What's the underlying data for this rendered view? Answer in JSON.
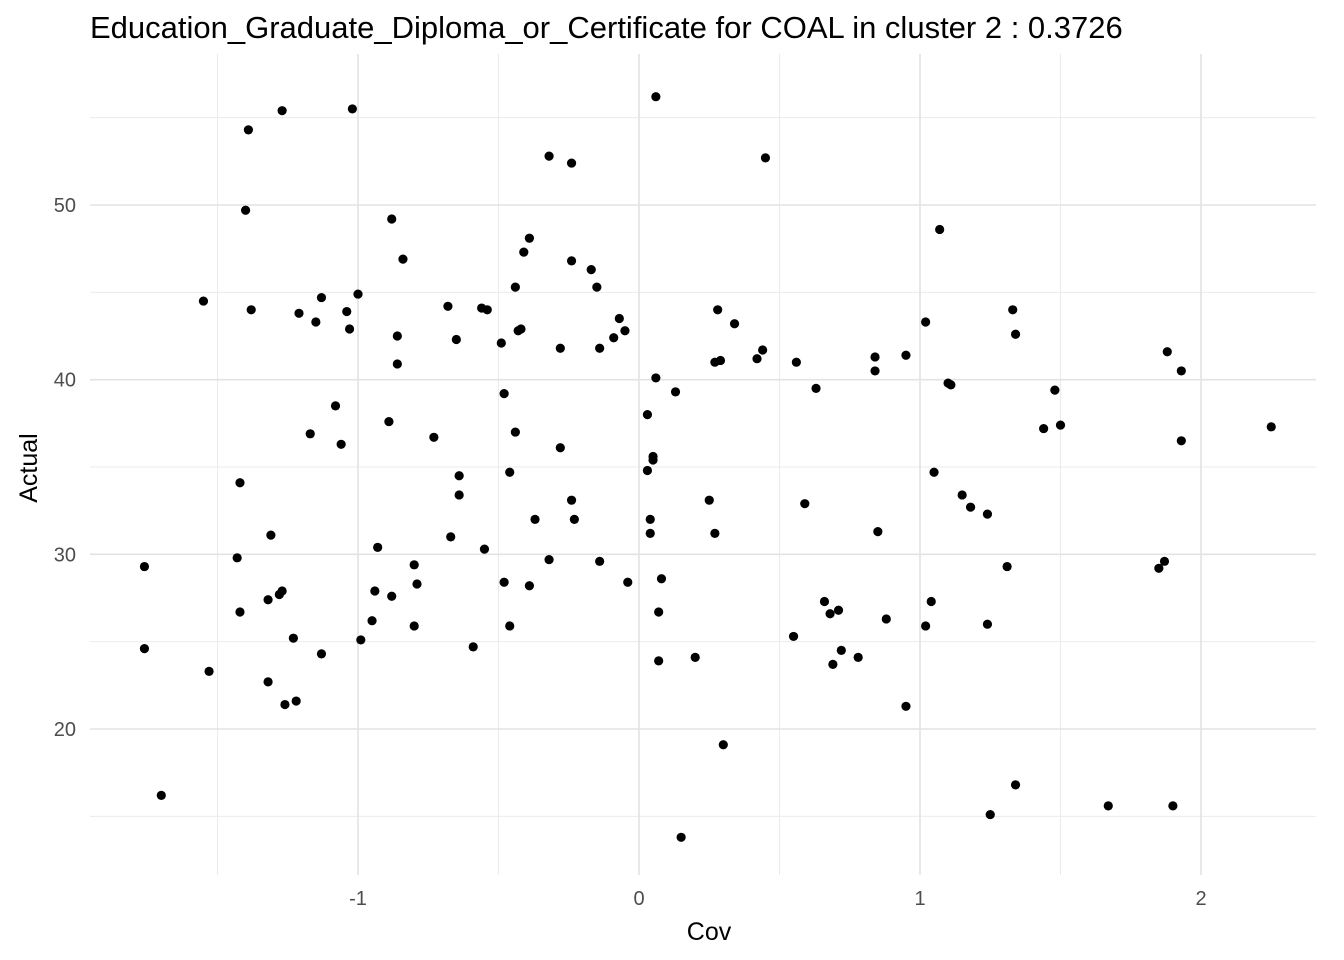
{
  "chart_data": {
    "type": "scatter",
    "title": "Education_Graduate_Diploma_or_Certificate for COAL in cluster 2 : 0.3726",
    "xlabel": "Cov",
    "ylabel": "Actual",
    "xlim": [
      -1.95,
      2.45
    ],
    "ylim": [
      12.8,
      57.4
    ],
    "x_ticks": [
      -1,
      0,
      1,
      2
    ],
    "x_tick_labels": [
      "-1",
      "0",
      "1",
      "2"
    ],
    "y_ticks": [
      20,
      30,
      40,
      50
    ],
    "y_tick_labels": [
      "20",
      "30",
      "40",
      "50"
    ],
    "grid": true,
    "point_color": "#000000",
    "points": [
      [
        -1.76,
        29.3
      ],
      [
        -1.76,
        24.6
      ],
      [
        -1.7,
        16.2
      ],
      [
        -1.55,
        44.5
      ],
      [
        -1.53,
        23.3
      ],
      [
        -1.43,
        29.8
      ],
      [
        -1.42,
        34.1
      ],
      [
        -1.42,
        26.7
      ],
      [
        -1.39,
        54.3
      ],
      [
        -1.4,
        49.7
      ],
      [
        -1.38,
        44.0
      ],
      [
        -1.31,
        31.1
      ],
      [
        -1.32,
        27.4
      ],
      [
        -1.32,
        22.7
      ],
      [
        -1.27,
        55.4
      ],
      [
        -1.27,
        27.9
      ],
      [
        -1.28,
        27.7
      ],
      [
        -1.26,
        21.4
      ],
      [
        -1.23,
        25.2
      ],
      [
        -1.22,
        21.6
      ],
      [
        -1.21,
        43.8
      ],
      [
        -1.17,
        36.9
      ],
      [
        -1.15,
        43.3
      ],
      [
        -1.13,
        44.7
      ],
      [
        -1.13,
        24.3
      ],
      [
        -1.08,
        38.5
      ],
      [
        -1.06,
        36.3
      ],
      [
        -1.04,
        43.9
      ],
      [
        -1.03,
        42.9
      ],
      [
        -1.02,
        55.5
      ],
      [
        -1.0,
        44.9
      ],
      [
        -0.99,
        25.1
      ],
      [
        -0.95,
        26.2
      ],
      [
        -0.94,
        27.9
      ],
      [
        -0.93,
        30.4
      ],
      [
        -0.88,
        49.2
      ],
      [
        -0.89,
        37.6
      ],
      [
        -0.88,
        27.6
      ],
      [
        -0.86,
        42.5
      ],
      [
        -0.86,
        40.9
      ],
      [
        -0.84,
        46.9
      ],
      [
        -0.8,
        29.4
      ],
      [
        -0.79,
        28.3
      ],
      [
        -0.8,
        25.9
      ],
      [
        -0.73,
        36.7
      ],
      [
        -0.68,
        44.2
      ],
      [
        -0.67,
        31.0
      ],
      [
        -0.65,
        42.3
      ],
      [
        -0.64,
        34.5
      ],
      [
        -0.64,
        33.4
      ],
      [
        -0.59,
        24.7
      ],
      [
        -0.56,
        44.1
      ],
      [
        -0.55,
        30.3
      ],
      [
        -0.54,
        44.0
      ],
      [
        -0.49,
        42.1
      ],
      [
        -0.48,
        39.2
      ],
      [
        -0.48,
        28.4
      ],
      [
        -0.46,
        25.9
      ],
      [
        -0.46,
        34.7
      ],
      [
        -0.44,
        45.3
      ],
      [
        -0.44,
        37.0
      ],
      [
        -0.43,
        42.8
      ],
      [
        -0.42,
        42.9
      ],
      [
        -0.41,
        47.3
      ],
      [
        -0.39,
        48.1
      ],
      [
        -0.39,
        28.2
      ],
      [
        -0.37,
        32.0
      ],
      [
        -0.32,
        52.8
      ],
      [
        -0.32,
        29.7
      ],
      [
        -0.28,
        41.8
      ],
      [
        -0.28,
        36.1
      ],
      [
        -0.24,
        52.4
      ],
      [
        -0.24,
        46.8
      ],
      [
        -0.24,
        33.1
      ],
      [
        -0.23,
        32.0
      ],
      [
        -0.17,
        46.3
      ],
      [
        -0.15,
        45.3
      ],
      [
        -0.14,
        41.8
      ],
      [
        -0.14,
        29.6
      ],
      [
        -0.09,
        42.4
      ],
      [
        -0.07,
        43.5
      ],
      [
        -0.05,
        42.8
      ],
      [
        -0.04,
        28.4
      ],
      [
        0.03,
        38.0
      ],
      [
        0.03,
        34.8
      ],
      [
        0.04,
        32.0
      ],
      [
        0.04,
        31.2
      ],
      [
        0.05,
        35.4
      ],
      [
        0.05,
        35.6
      ],
      [
        0.06,
        56.2
      ],
      [
        0.06,
        40.1
      ],
      [
        0.07,
        26.7
      ],
      [
        0.07,
        23.9
      ],
      [
        0.08,
        28.6
      ],
      [
        0.13,
        39.3
      ],
      [
        0.15,
        13.8
      ],
      [
        0.2,
        24.1
      ],
      [
        0.25,
        33.1
      ],
      [
        0.27,
        31.2
      ],
      [
        0.27,
        41.0
      ],
      [
        0.28,
        44.0
      ],
      [
        0.29,
        41.1
      ],
      [
        0.3,
        19.1
      ],
      [
        0.34,
        43.2
      ],
      [
        0.42,
        41.2
      ],
      [
        0.45,
        52.7
      ],
      [
        0.44,
        41.7
      ],
      [
        0.55,
        25.3
      ],
      [
        0.56,
        41.0
      ],
      [
        0.59,
        32.9
      ],
      [
        0.63,
        39.5
      ],
      [
        0.66,
        27.3
      ],
      [
        0.68,
        26.6
      ],
      [
        0.69,
        23.7
      ],
      [
        0.71,
        26.8
      ],
      [
        0.72,
        24.5
      ],
      [
        0.78,
        24.1
      ],
      [
        0.84,
        41.3
      ],
      [
        0.84,
        40.5
      ],
      [
        0.85,
        31.3
      ],
      [
        0.88,
        26.3
      ],
      [
        0.95,
        41.4
      ],
      [
        0.95,
        21.3
      ],
      [
        1.02,
        43.3
      ],
      [
        1.02,
        25.9
      ],
      [
        1.04,
        27.3
      ],
      [
        1.05,
        34.7
      ],
      [
        1.07,
        48.6
      ],
      [
        1.1,
        39.8
      ],
      [
        1.11,
        39.7
      ],
      [
        1.15,
        33.4
      ],
      [
        1.18,
        32.7
      ],
      [
        1.24,
        32.3
      ],
      [
        1.24,
        26.0
      ],
      [
        1.25,
        15.1
      ],
      [
        1.31,
        29.3
      ],
      [
        1.33,
        44.0
      ],
      [
        1.34,
        42.6
      ],
      [
        1.34,
        16.8
      ],
      [
        1.44,
        37.2
      ],
      [
        1.48,
        39.4
      ],
      [
        1.5,
        37.4
      ],
      [
        1.67,
        15.6
      ],
      [
        1.85,
        29.2
      ],
      [
        1.87,
        29.6
      ],
      [
        1.88,
        41.6
      ],
      [
        1.9,
        15.6
      ],
      [
        1.93,
        40.5
      ],
      [
        1.93,
        36.5
      ],
      [
        2.25,
        37.3
      ]
    ]
  }
}
